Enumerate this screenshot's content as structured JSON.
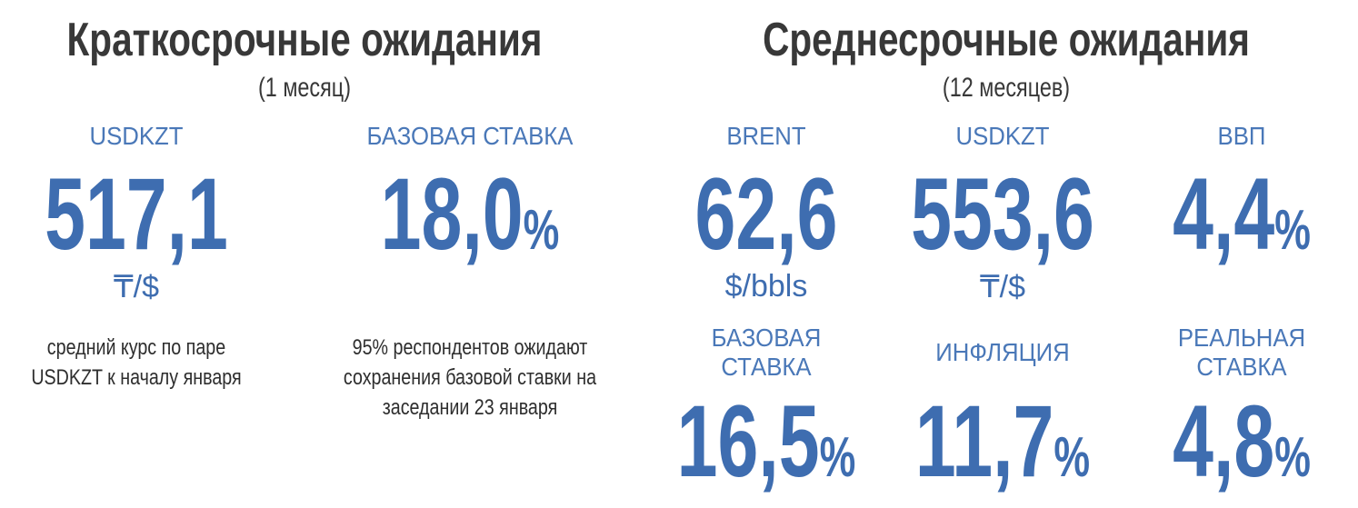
{
  "short_term": {
    "title": "Краткосрочные ожидания",
    "subtitle": "(1 месяц)",
    "items": [
      {
        "label": "USDKZT",
        "value": "517,1",
        "suffix": "",
        "unit": "₸/$",
        "note": [
          "средний курс по паре",
          "USDKZT к началу января"
        ]
      },
      {
        "label": "БАЗОВАЯ СТАВКА",
        "value": "18,0",
        "suffix": "%",
        "note": [
          "95% респондентов ожидают",
          "сохранения базовой ставки на",
          "заседании 23 января"
        ]
      }
    ]
  },
  "medium_term": {
    "title": "Среднесрочные ожидания",
    "subtitle": "(12 месяцев)",
    "items": [
      {
        "label": [
          "BRENT"
        ],
        "value": "62,6",
        "suffix": "",
        "unit": "$/bbls"
      },
      {
        "label": [
          "USDKZT"
        ],
        "value": "553,6",
        "suffix": "",
        "unit": "₸/$"
      },
      {
        "label": [
          "ВВП"
        ],
        "value": "4,4",
        "suffix": "%"
      },
      {
        "label": [
          "БАЗОВАЯ",
          "СТАВКА"
        ],
        "value": "16,5",
        "suffix": "%"
      },
      {
        "label": [
          "ИНФЛЯЦИЯ"
        ],
        "value": "11,7",
        "suffix": "%"
      },
      {
        "label": [
          "РЕАЛЬНАЯ",
          "СТАВКА"
        ],
        "value": "4,8",
        "suffix": "%"
      }
    ]
  },
  "colors": {
    "accent": "#3e6db0",
    "label": "#4a78b8",
    "heading": "#383838"
  }
}
